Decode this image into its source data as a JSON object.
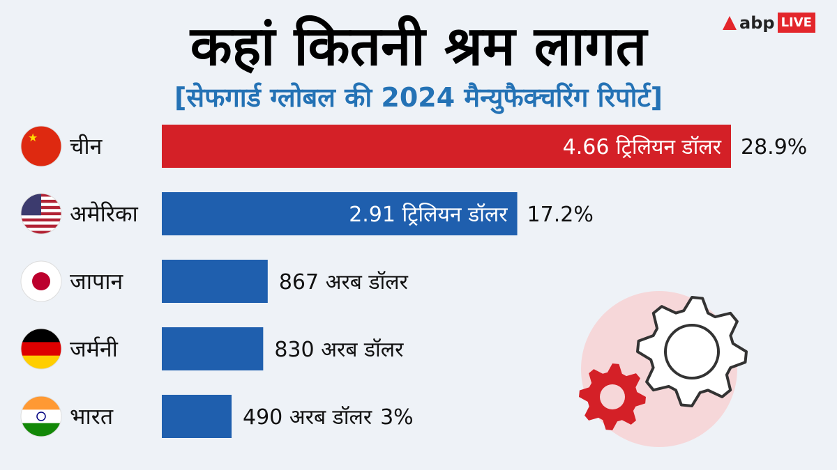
{
  "logo": {
    "brand": "abp",
    "badge": "LIVE"
  },
  "chart_data": {
    "type": "bar",
    "orientation": "horizontal",
    "title": "कहां कितनी श्रम लागत",
    "subtitle": "[सेफगार्ड ग्लोबल की 2024 मैन्युफैक्चरिंग रिपोर्ट]",
    "categories": [
      "चीन",
      "अमेरिका",
      "जापान",
      "जर्मनी",
      "भारत"
    ],
    "flags": [
      "china-flag",
      "usa-flag",
      "japan-flag",
      "germany-flag",
      "india-flag"
    ],
    "values_billion_usd": [
      4660,
      2910,
      867,
      830,
      490
    ],
    "value_labels": [
      "4.66 ट्रिलियन डॉलर",
      "2.91 ट्रिलियन डॉलर",
      "867 अरब डॉलर",
      "830 अरब डॉलर",
      "490 अरब डॉलर"
    ],
    "share_labels": [
      "28.9%",
      "17.2%",
      "",
      "",
      "3%"
    ],
    "colors": [
      "#d42027",
      "#1f5fae",
      "#1f5fae",
      "#1f5fae",
      "#1f5fae"
    ],
    "grid": false,
    "axes_visible": false
  }
}
